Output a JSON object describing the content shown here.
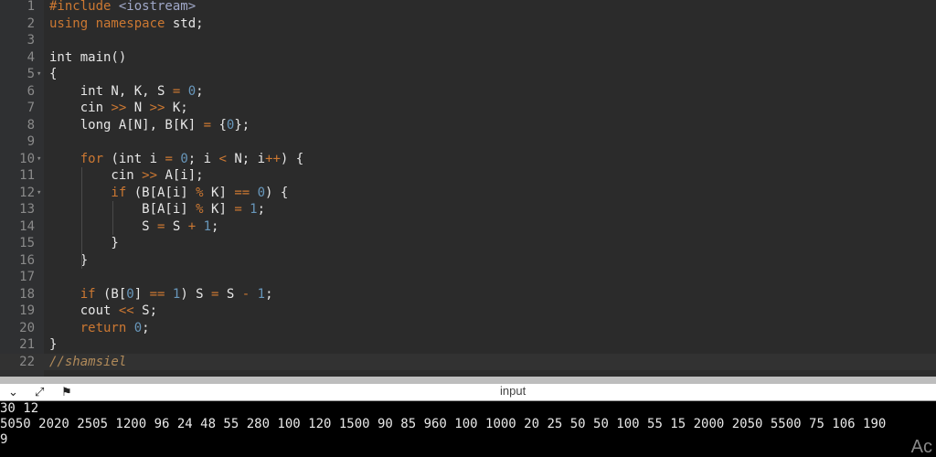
{
  "editor": {
    "lines": [
      {
        "n": "1",
        "fold": false,
        "tokens": [
          [
            "pp",
            "#include "
          ],
          [
            "str",
            "<iostream>"
          ]
        ]
      },
      {
        "n": "2",
        "fold": false,
        "tokens": [
          [
            "kw",
            "using namespace "
          ],
          [
            "",
            "std;"
          ]
        ]
      },
      {
        "n": "3",
        "fold": false,
        "tokens": []
      },
      {
        "n": "4",
        "fold": false,
        "tokens": [
          [
            "",
            "int main()"
          ]
        ]
      },
      {
        "n": "5",
        "fold": true,
        "tokens": [
          [
            "",
            "{"
          ]
        ]
      },
      {
        "n": "6",
        "fold": false,
        "tokens": [
          [
            "",
            "    int N, K, S "
          ],
          [
            "op",
            "="
          ],
          [
            "num",
            " 0"
          ],
          [
            "",
            ";"
          ]
        ]
      },
      {
        "n": "7",
        "fold": false,
        "tokens": [
          [
            "",
            "    cin "
          ],
          [
            "op",
            ">>"
          ],
          [
            "",
            " N "
          ],
          [
            "op",
            ">>"
          ],
          [
            "",
            " K;"
          ]
        ]
      },
      {
        "n": "8",
        "fold": false,
        "tokens": [
          [
            "",
            "    long A[N], B[K] "
          ],
          [
            "op",
            "="
          ],
          [
            "",
            " {"
          ],
          [
            "num",
            "0"
          ],
          [
            "",
            "};"
          ]
        ]
      },
      {
        "n": "9",
        "fold": false,
        "tokens": []
      },
      {
        "n": "10",
        "fold": true,
        "tokens": [
          [
            "kw",
            "    for"
          ],
          [
            "",
            " (int i "
          ],
          [
            "op",
            "="
          ],
          [
            "num",
            " 0"
          ],
          [
            "",
            "; i "
          ],
          [
            "op",
            "<"
          ],
          [
            "",
            " N; i"
          ],
          [
            "op",
            "++"
          ],
          [
            "",
            ") {"
          ]
        ]
      },
      {
        "n": "11",
        "fold": false,
        "tokens": [
          [
            "",
            "        cin "
          ],
          [
            "op",
            ">>"
          ],
          [
            "",
            " A[i];"
          ]
        ]
      },
      {
        "n": "12",
        "fold": true,
        "tokens": [
          [
            "kw",
            "        if"
          ],
          [
            "",
            " (B[A[i] "
          ],
          [
            "op",
            "%"
          ],
          [
            "",
            " K] "
          ],
          [
            "op",
            "=="
          ],
          [
            "num",
            " 0"
          ],
          [
            "",
            ") {"
          ]
        ]
      },
      {
        "n": "13",
        "fold": false,
        "tokens": [
          [
            "",
            "            B[A[i] "
          ],
          [
            "op",
            "%"
          ],
          [
            "",
            " K] "
          ],
          [
            "op",
            "="
          ],
          [
            "num",
            " 1"
          ],
          [
            "",
            ";"
          ]
        ]
      },
      {
        "n": "14",
        "fold": false,
        "tokens": [
          [
            "",
            "            S "
          ],
          [
            "op",
            "="
          ],
          [
            "",
            " S "
          ],
          [
            "op",
            "+"
          ],
          [
            "num",
            " 1"
          ],
          [
            "",
            ";"
          ]
        ]
      },
      {
        "n": "15",
        "fold": false,
        "tokens": [
          [
            "",
            "        }"
          ]
        ]
      },
      {
        "n": "16",
        "fold": false,
        "tokens": [
          [
            "",
            "    }"
          ]
        ]
      },
      {
        "n": "17",
        "fold": false,
        "tokens": []
      },
      {
        "n": "18",
        "fold": false,
        "tokens": [
          [
            "kw",
            "    if"
          ],
          [
            "",
            " (B["
          ],
          [
            "num",
            "0"
          ],
          [
            "",
            "] "
          ],
          [
            "op",
            "=="
          ],
          [
            "num",
            " 1"
          ],
          [
            "",
            ") S "
          ],
          [
            "op",
            "="
          ],
          [
            "",
            " S "
          ],
          [
            "op",
            "-"
          ],
          [
            "num",
            " 1"
          ],
          [
            "",
            ";"
          ]
        ]
      },
      {
        "n": "19",
        "fold": false,
        "tokens": [
          [
            "",
            "    cout "
          ],
          [
            "op",
            "<<"
          ],
          [
            "",
            " S;"
          ]
        ]
      },
      {
        "n": "20",
        "fold": false,
        "tokens": [
          [
            "kw",
            "    return"
          ],
          [
            "num",
            " 0"
          ],
          [
            "",
            ";"
          ]
        ]
      },
      {
        "n": "21",
        "fold": false,
        "tokens": [
          [
            "",
            "}"
          ]
        ]
      },
      {
        "n": "22",
        "fold": false,
        "active": true,
        "tokens": [
          [
            "cm",
            "//shamsiel"
          ]
        ]
      }
    ]
  },
  "toolbar": {
    "title": "input",
    "icons": [
      "chevron-down-icon",
      "expand-icon",
      "clear-console-icon"
    ]
  },
  "console": {
    "lines": [
      "30 12",
      "5050 2020 2505 1200 96 24 48 55 280 100 120 1500 90 85 960 100 1000 20 25 50 50 100 55 15 2000 2050 5500 75 106 190",
      "9"
    ]
  },
  "watermark": "Ac",
  "colors": {
    "background": "#2b2b2b",
    "keyword": "#cc7832",
    "number": "#6897bb",
    "console_bg": "#000000"
  }
}
